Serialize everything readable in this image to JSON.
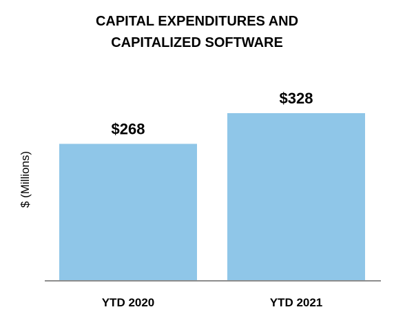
{
  "chart_data": {
    "type": "bar",
    "title_lines": [
      "CAPITAL EXPENDITURES AND",
      "CAPITALIZED SOFTWARE"
    ],
    "ylabel": "$ (Millions)",
    "xlabel": "",
    "categories": [
      "YTD 2020",
      "YTD 2021"
    ],
    "values": [
      268,
      328
    ],
    "data_labels": [
      "$268",
      "$328"
    ],
    "ylim": [
      0,
      328
    ],
    "grid": false,
    "legend": "none",
    "bar_color": "#8fc6e8",
    "axis_color": "#8c8c8c"
  }
}
